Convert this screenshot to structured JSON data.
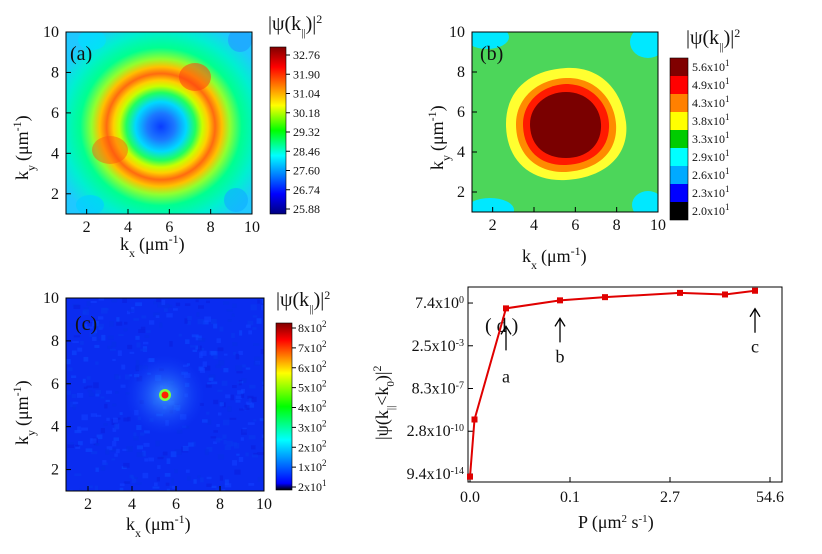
{
  "chart_data": [
    {
      "type": "heatmap",
      "panel": "(a)",
      "xlabel": "k_x (μm^-1)",
      "ylabel": "k_y (μm^-1)",
      "xlim": [
        1,
        10
      ],
      "ylim": [
        1,
        10
      ],
      "x_ticks": [
        "2",
        "4",
        "6",
        "8",
        "10"
      ],
      "y_ticks": [
        "2",
        "4",
        "6",
        "8",
        "10"
      ],
      "colorbar_title": "|ψ(k||)|²",
      "colorbar_ticks": [
        "32.76",
        "31.90",
        "31.04",
        "30.18",
        "29.32",
        "28.46",
        "27.60",
        "26.74",
        "25.88"
      ],
      "pattern": "ring",
      "ring_center": [
        5.6,
        5.6
      ],
      "ring_radius": 2.4,
      "value_range": [
        25.88,
        32.76
      ]
    },
    {
      "type": "heatmap",
      "panel": "(b)",
      "xlabel": "k_x (μm^-1)",
      "ylabel": "k_y (μm^-1)",
      "xlim": [
        1,
        10
      ],
      "ylim": [
        1,
        10
      ],
      "x_ticks": [
        "2",
        "4",
        "6",
        "8",
        "10"
      ],
      "y_ticks": [
        "2",
        "4",
        "6",
        "8",
        "10"
      ],
      "colorbar_title": "|ψ(k||)|²",
      "colorbar_levels": [
        {
          "label": "5.6x10",
          "exp": "1",
          "color": "#800000"
        },
        {
          "label": "4.9x10",
          "exp": "1",
          "color": "#ff0000"
        },
        {
          "label": "4.3x10",
          "exp": "1",
          "color": "#ff8000"
        },
        {
          "label": "3.8x10",
          "exp": "1",
          "color": "#ffff00"
        },
        {
          "label": "3.3x10",
          "exp": "1",
          "color": "#00cc00"
        },
        {
          "label": "2.9x10",
          "exp": "1",
          "color": "#00ffff"
        },
        {
          "label": "2.6x10",
          "exp": "1",
          "color": "#00aaff"
        },
        {
          "label": "2.3x10",
          "exp": "1",
          "color": "#0000ff"
        },
        {
          "label": "2.0x10",
          "exp": "1",
          "color": "#000000"
        }
      ],
      "pattern": "peak",
      "peak_center": [
        5.5,
        5.5
      ]
    },
    {
      "type": "heatmap",
      "panel": "(c)",
      "xlabel": "k_x (μm^-1)",
      "ylabel": "k_y (μm^-1)",
      "xlim": [
        1,
        10
      ],
      "ylim": [
        1,
        10
      ],
      "x_ticks": [
        "2",
        "4",
        "6",
        "8",
        "10"
      ],
      "y_ticks": [
        "2",
        "4",
        "6",
        "8",
        "10"
      ],
      "colorbar_title": "|ψ(k||)|²",
      "colorbar_ticks": [
        {
          "m": "8x10",
          "e": "2"
        },
        {
          "m": "7x10",
          "e": "2"
        },
        {
          "m": "6x10",
          "e": "2"
        },
        {
          "m": "5x10",
          "e": "2"
        },
        {
          "m": "4x10",
          "e": "2"
        },
        {
          "m": "3x10",
          "e": "2"
        },
        {
          "m": "2x10",
          "e": "2"
        },
        {
          "m": "1x10",
          "e": "2"
        },
        {
          "m": "2x10",
          "e": "1"
        }
      ],
      "pattern": "sharp-peak",
      "peak_center": [
        5.5,
        5.5
      ]
    },
    {
      "type": "line",
      "panel": "( d )",
      "xlabel": "P (μm² s⁻¹)",
      "ylabel": "|ψ(k||<k0)|²",
      "x_ticks": [
        "0.0",
        "0.1",
        "2.7",
        "54.6"
      ],
      "y_ticks": [
        {
          "m": "7.4x10",
          "e": "0"
        },
        {
          "m": "2.5x10",
          "e": "-3"
        },
        {
          "m": "8.3x10",
          "e": "-7"
        },
        {
          "m": "2.8x10",
          "e": "-10"
        },
        {
          "m": "9.4x10",
          "e": "-14"
        }
      ],
      "x_scale": "exponential (ticks at e^-∞, e^-2.3, e^1, e^4)",
      "y_scale": "log",
      "series": [
        {
          "color": "#e00000",
          "x": [
            0.0,
            1.5,
            12.0,
            30.0,
            45.0,
            70.0,
            85.0,
            95.0
          ],
          "y_log_e": [
            -30.5,
            -19.8,
            1.0,
            2.5,
            3.1,
            3.9,
            3.6,
            4.3
          ]
        }
      ],
      "annotations": [
        {
          "text": "a",
          "points_to_index": 2
        },
        {
          "text": "b",
          "points_to_index": 3
        },
        {
          "text": "c",
          "points_to_index": 7
        }
      ]
    }
  ],
  "labels": {
    "a_panel": "(a)",
    "b_panel": "(b)",
    "c_panel": "(c)",
    "d_panel": "( d )",
    "kx": "k",
    "kx_sub": "x",
    "ky": "k",
    "ky_sub": "y",
    "unit": "(μm",
    "unit_sup": "-1",
    "unit_close": ")",
    "psi_open": "|ψ(k",
    "psi_sub": "||",
    "psi_close": ")|",
    "psi_sup": "2",
    "d_ylabel_open": "|ψ(k",
    "d_ylabel_sub1": "||",
    "d_ylabel_mid": "<k",
    "d_ylabel_sub2": "0",
    "d_ylabel_close": ")|",
    "d_ylabel_sup": "2",
    "d_xlabel": "P (μm",
    "d_xlabel_sup1": "2",
    "d_xlabel_mid": " s",
    "d_xlabel_sup2": "-1",
    "d_xlabel_close": ")",
    "arrow_a": "a",
    "arrow_b": "b",
    "arrow_c": "c"
  }
}
